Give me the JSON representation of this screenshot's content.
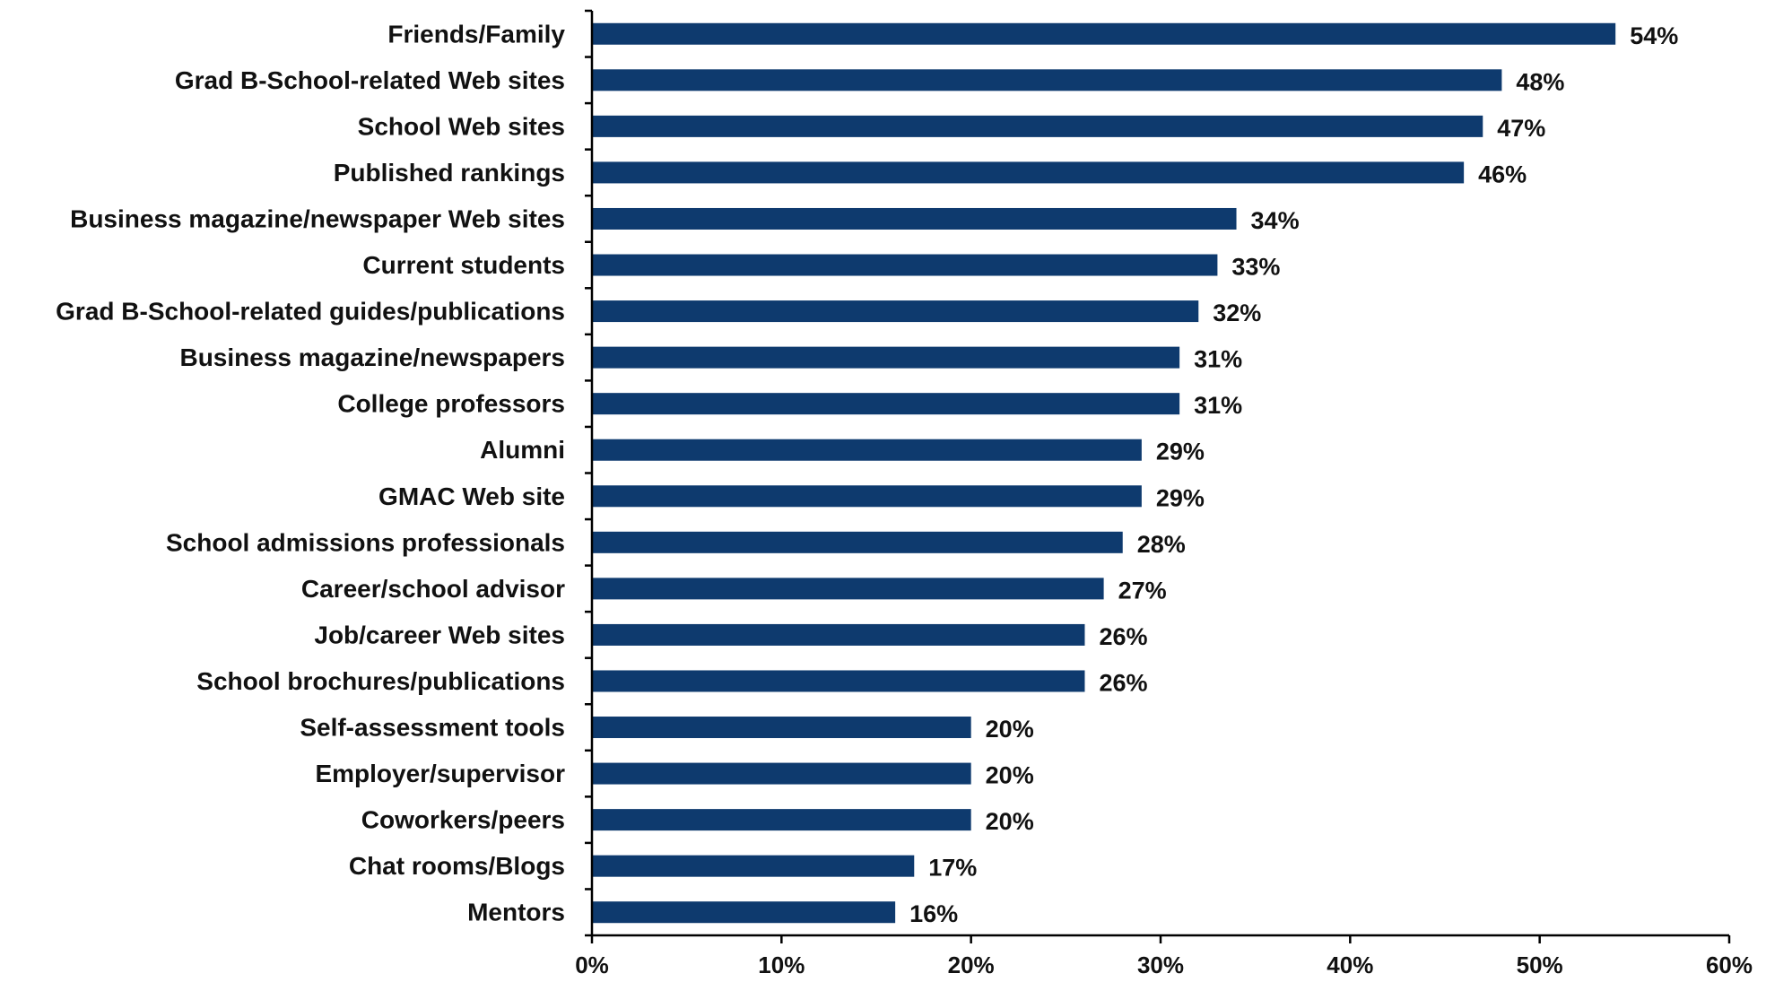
{
  "chart_data": {
    "type": "bar",
    "orientation": "horizontal",
    "title": "",
    "xlabel": "",
    "ylabel": "",
    "categories": [
      "Friends/Family",
      "Grad B-School-related Web sites",
      "School Web sites",
      "Published rankings",
      "Business magazine/newspaper Web sites",
      "Current students",
      "Grad B-School-related guides/publications",
      "Business magazine/newspapers",
      "College professors",
      "Alumni",
      "GMAC Web site",
      "School admissions  professionals",
      "Career/school advisor",
      "Job/career Web sites",
      "School brochures/publications",
      "Self-assessment tools",
      "Employer/supervisor",
      "Coworkers/peers",
      "Chat rooms/Blogs",
      "Mentors"
    ],
    "values": [
      54,
      48,
      47,
      46,
      34,
      33,
      32,
      31,
      31,
      29,
      29,
      28,
      27,
      26,
      26,
      20,
      20,
      20,
      17,
      16
    ],
    "value_labels": [
      "54%",
      "48%",
      "47%",
      "46%",
      "34%",
      "33%",
      "32%",
      "31%",
      "31%",
      "29%",
      "29%",
      "28%",
      "27%",
      "26%",
      "26%",
      "20%",
      "20%",
      "20%",
      "17%",
      "16%"
    ],
    "xlim": [
      0,
      60
    ],
    "xticks": [
      0,
      10,
      20,
      30,
      40,
      50,
      60
    ],
    "xtick_labels": [
      "0%",
      "10%",
      "20%",
      "30%",
      "40%",
      "50%",
      "60%"
    ],
    "grid": false,
    "legend": "none",
    "bar_color": "#0e3a6e"
  }
}
